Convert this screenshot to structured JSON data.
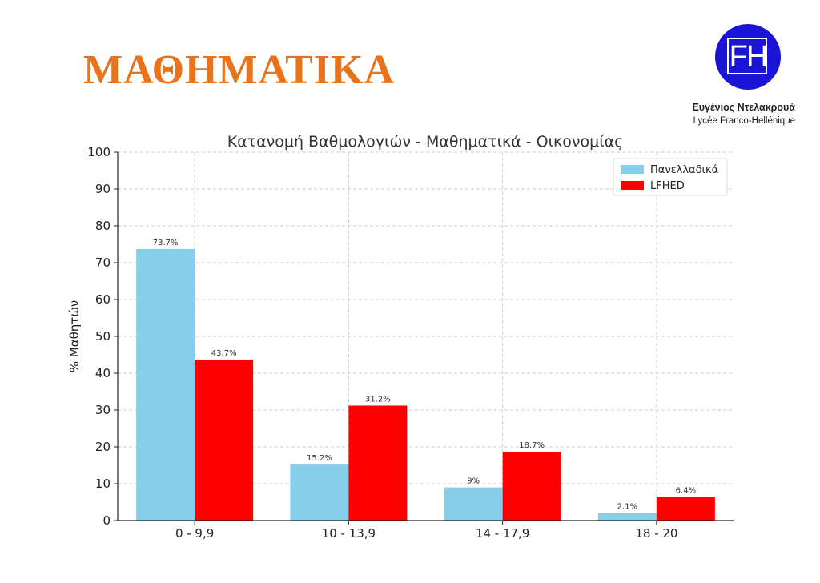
{
  "slide": {
    "title": "ΜΑΘΗΜΑΤΙΚΑ",
    "title_color": "#e8731a",
    "logo_monogram": "FH",
    "logo_color": "#1a14d6",
    "author": "Ευγένιος Ντελακρουά",
    "school": "Lycée Franco-Hellénique"
  },
  "chart_data": {
    "type": "bar",
    "title": "Κατανομή Βαθμολογιών - Μαθηματικά - Οικονομίας",
    "xlabel": "",
    "ylabel": "% Μαθητών",
    "ylim": [
      0,
      100
    ],
    "yticks": [
      0,
      10,
      20,
      30,
      40,
      50,
      60,
      70,
      80,
      90,
      100
    ],
    "grid": true,
    "legend_position": "top-right",
    "categories": [
      "0 - 9,9",
      "10 - 13,9",
      "14 - 17,9",
      "18 - 20"
    ],
    "series": [
      {
        "name": "Πανελλαδικά",
        "color": "#87ceeb",
        "values": [
          73.7,
          15.2,
          9,
          2.1
        ],
        "labels": [
          "73.7%",
          "15.2%",
          "9%",
          "2.1%"
        ]
      },
      {
        "name": "LFHED",
        "color": "#ff0000",
        "values": [
          43.7,
          31.2,
          18.7,
          6.4
        ],
        "labels": [
          "43.7%",
          "31.2%",
          "18.7%",
          "6.4%"
        ]
      }
    ]
  }
}
